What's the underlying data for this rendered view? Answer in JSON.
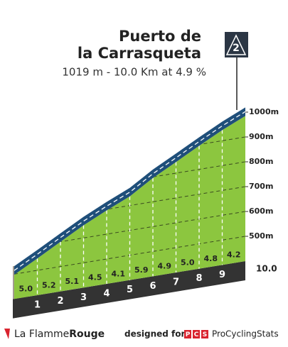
{
  "chart_data": {
    "type": "profile",
    "title": [
      "Puerto de",
      "la Carrasqueta"
    ],
    "subtitle": "1019 m - 10.0 Km at 4.9 %",
    "category": "2",
    "x": [
      0,
      1,
      2,
      3,
      4,
      5,
      6,
      7,
      8,
      9,
      10
    ],
    "values": [
      532,
      582,
      634,
      685,
      730,
      771,
      830,
      879,
      929,
      977,
      1019
    ],
    "segments": {
      "values": [
        5.0,
        5.2,
        5.1,
        4.5,
        4.1,
        5.9,
        4.9,
        5.0,
        4.8,
        4.2
      ],
      "value_labels": [
        "5.0",
        "5.2",
        "5.1",
        "4.5",
        "4.1",
        "5.9",
        "4.9",
        "5.0",
        "4.8",
        "4.2"
      ]
    },
    "xlim": [
      0,
      10
    ],
    "xticks": [
      1,
      2,
      3,
      4,
      5,
      6,
      7,
      8,
      9,
      {
        "value": 10,
        "label": "10.0"
      }
    ],
    "ylim": [
      400,
      1040
    ],
    "yticks": [
      {
        "value": 500,
        "label": "500m"
      },
      {
        "value": 600,
        "label": "600m"
      },
      {
        "value": 700,
        "label": "700m"
      },
      {
        "value": 800,
        "label": "800m"
      },
      {
        "value": 900,
        "label": "900m"
      },
      {
        "value": 1000,
        "label": "1000m"
      }
    ],
    "grid": true,
    "colors": {
      "band": "#1f4f7a",
      "fill": "#8cc63f",
      "base": "#333333",
      "side": "#a39c92"
    }
  },
  "footer": {
    "brand": "La Flamme",
    "brand_bold": "Rouge",
    "designed": "designed for",
    "pcs": [
      "P",
      "C",
      "S"
    ],
    "pcs_name": "ProCyclingStats"
  }
}
